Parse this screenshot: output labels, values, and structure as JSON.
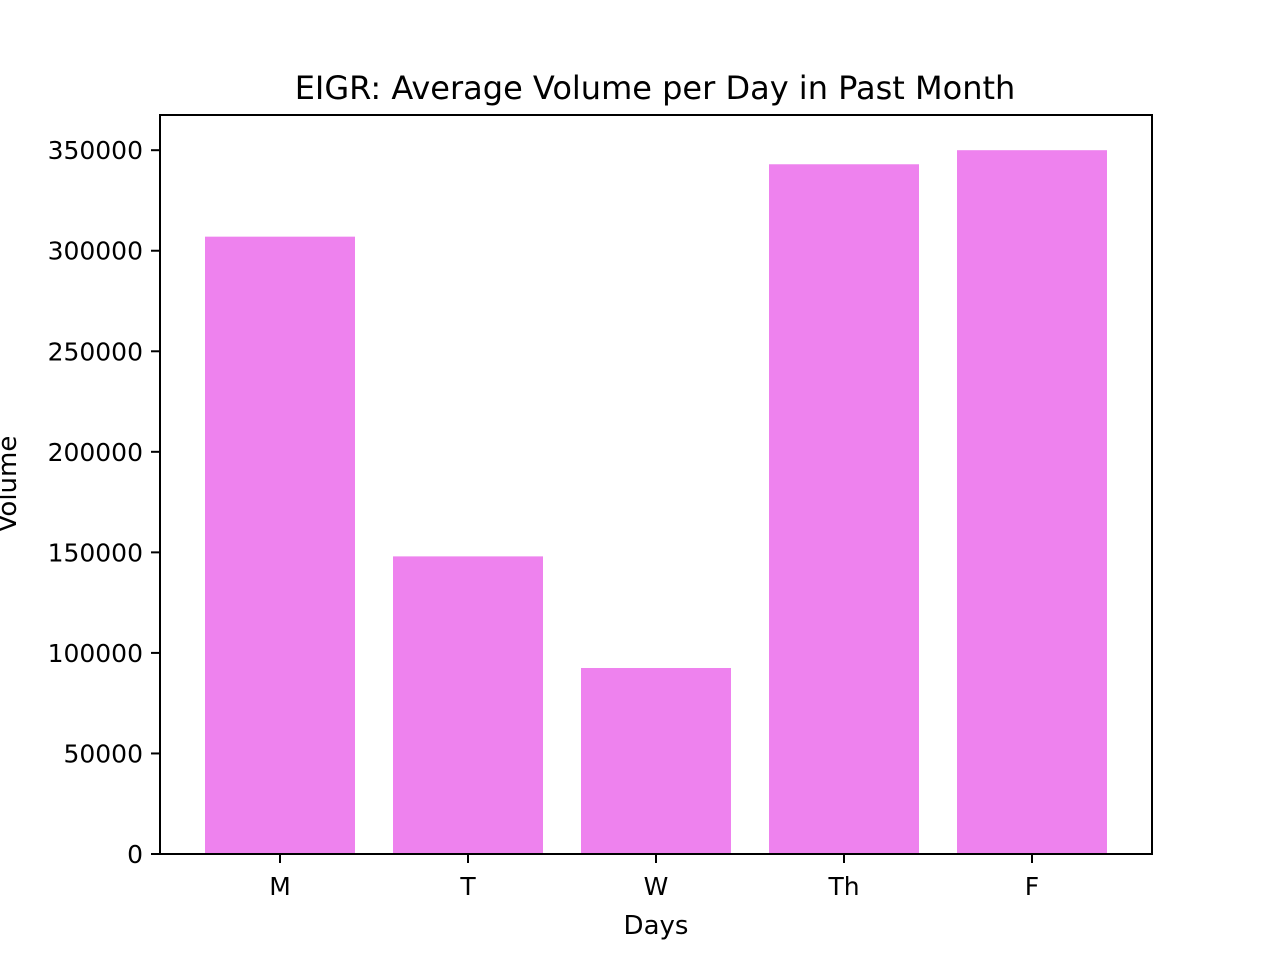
{
  "chart_data": {
    "type": "bar",
    "title": "EIGR: Average Volume per Day in Past Month",
    "xlabel": "Days",
    "ylabel": "Volume",
    "categories": [
      "M",
      "T",
      "W",
      "Th",
      "F"
    ],
    "values": [
      307000,
      148000,
      92500,
      343000,
      350000
    ],
    "ylim": [
      0,
      367500
    ],
    "yticks": [
      0,
      50000,
      100000,
      150000,
      200000,
      250000,
      300000,
      350000
    ],
    "ytick_labels": [
      "0",
      "50000",
      "100000",
      "150000",
      "200000",
      "250000",
      "300000",
      "350000"
    ],
    "bar_color": "#ee82ee",
    "grid": false,
    "legend": "none"
  }
}
